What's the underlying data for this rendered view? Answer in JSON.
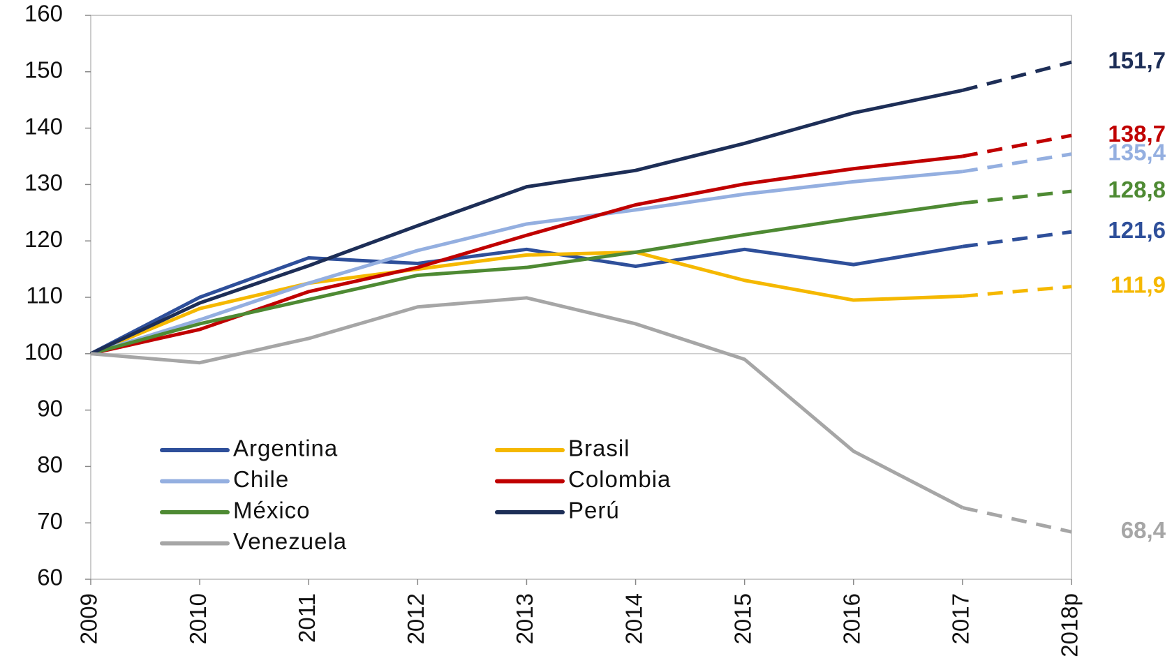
{
  "chart_data": {
    "type": "line",
    "categories": [
      "2009",
      "2010",
      "2011",
      "2012",
      "2013",
      "2014",
      "2015",
      "2016",
      "2017",
      "2018p"
    ],
    "series": [
      {
        "name": "Argentina",
        "color": "#2e4f9a",
        "values": [
          100,
          110,
          117,
          116,
          118.5,
          115.5,
          118.5,
          115.8,
          119,
          121.6
        ],
        "value_labels": [
          null,
          null,
          null,
          null,
          null,
          null,
          null,
          null,
          null,
          "121,6"
        ]
      },
      {
        "name": "Brasil",
        "color": "#f5b800",
        "values": [
          100,
          108,
          112.5,
          115,
          117.5,
          118,
          113,
          109.5,
          110.2,
          111.9
        ],
        "value_labels": [
          null,
          null,
          null,
          null,
          null,
          null,
          null,
          null,
          null,
          "111,9"
        ]
      },
      {
        "name": "Chile",
        "color": "#94afe0",
        "values": [
          100,
          106,
          112.5,
          118.3,
          123,
          125.5,
          128.3,
          130.5,
          132.3,
          135.4
        ],
        "value_labels": [
          null,
          null,
          null,
          null,
          null,
          null,
          null,
          null,
          null,
          "135,4"
        ]
      },
      {
        "name": "Colombia",
        "color": "#c00000",
        "values": [
          100,
          104.3,
          111,
          115.3,
          121,
          126.4,
          130.1,
          132.8,
          135,
          138.7
        ],
        "value_labels": [
          null,
          null,
          null,
          null,
          null,
          null,
          null,
          null,
          null,
          "138,7"
        ]
      },
      {
        "name": "México",
        "color": "#4e8a33",
        "values": [
          100,
          105.3,
          109.6,
          113.9,
          115.3,
          118,
          121.1,
          124,
          126.7,
          128.8
        ],
        "value_labels": [
          null,
          null,
          null,
          null,
          null,
          null,
          null,
          null,
          null,
          "128,8"
        ]
      },
      {
        "name": "Perú",
        "color": "#1d2e57",
        "values": [
          100,
          109,
          115.6,
          122.7,
          129.6,
          132.5,
          137.3,
          142.7,
          146.7,
          151.7
        ],
        "value_labels": [
          null,
          null,
          null,
          null,
          null,
          null,
          null,
          null,
          null,
          "151,7"
        ]
      },
      {
        "name": "Venezuela",
        "color": "#a6a6a6",
        "values": [
          100,
          98.4,
          102.7,
          108.3,
          109.9,
          105.3,
          99,
          82.7,
          72.7,
          68.4
        ],
        "value_labels": [
          null,
          null,
          null,
          null,
          null,
          null,
          null,
          null,
          null,
          "68,4"
        ]
      }
    ],
    "ylim": [
      60,
      160
    ],
    "yticks": [
      60,
      70,
      80,
      90,
      100,
      110,
      120,
      130,
      140,
      150,
      160
    ],
    "reference_line": 100,
    "dashed_last_segment": true,
    "legend": "lower left",
    "legend_columns": 2
  }
}
